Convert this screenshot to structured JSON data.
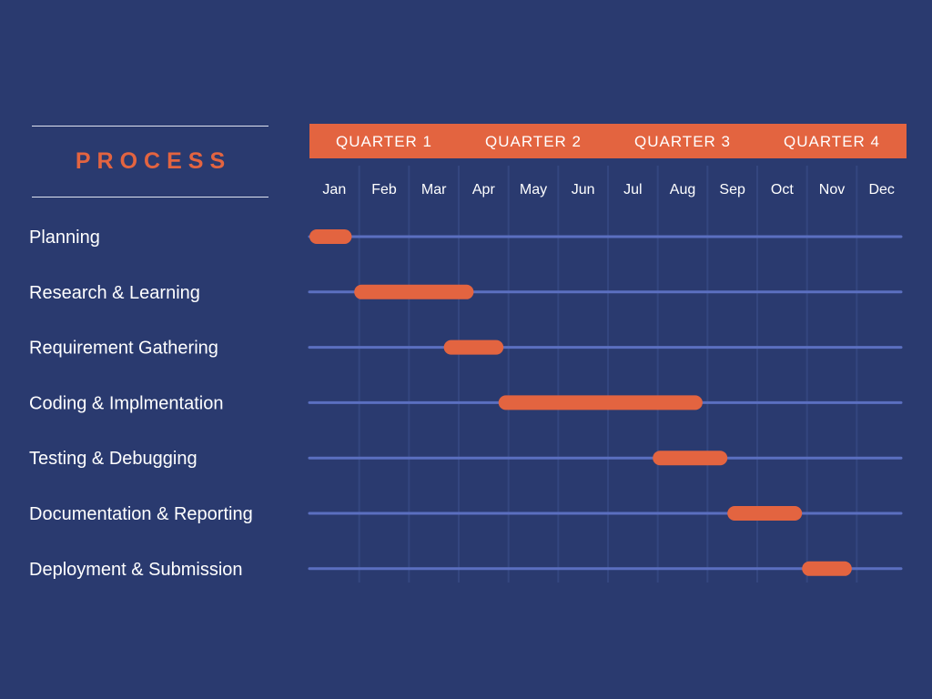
{
  "title": "PROCESS",
  "colors": {
    "background": "#2a3a6f",
    "accent": "#e36440",
    "track": "#5b6fc0",
    "grid": "#34467f",
    "text": "#ffffff"
  },
  "chart_data": {
    "type": "gantt",
    "quarters": [
      "QUARTER 1",
      "QUARTER 2",
      "QUARTER 3",
      "QUARTER 4"
    ],
    "months": [
      "Jan",
      "Feb",
      "Mar",
      "Apr",
      "May",
      "Jun",
      "Jul",
      "Aug",
      "Sep",
      "Oct",
      "Nov",
      "Dec"
    ],
    "tasks": [
      {
        "name": "Planning",
        "start_month": 0.0,
        "end_month": 0.85
      },
      {
        "name": "Research & Learning",
        "start_month": 0.9,
        "end_month": 3.3
      },
      {
        "name": "Requirement Gathering",
        "start_month": 2.7,
        "end_month": 3.9
      },
      {
        "name": "Coding & Implmentation",
        "start_month": 3.8,
        "end_month": 7.9
      },
      {
        "name": "Testing & Debugging",
        "start_month": 6.9,
        "end_month": 8.4
      },
      {
        "name": "Documentation & Reporting",
        "start_month": 8.4,
        "end_month": 9.9
      },
      {
        "name": "Deployment & Submission",
        "start_month": 9.9,
        "end_month": 10.9
      }
    ]
  }
}
